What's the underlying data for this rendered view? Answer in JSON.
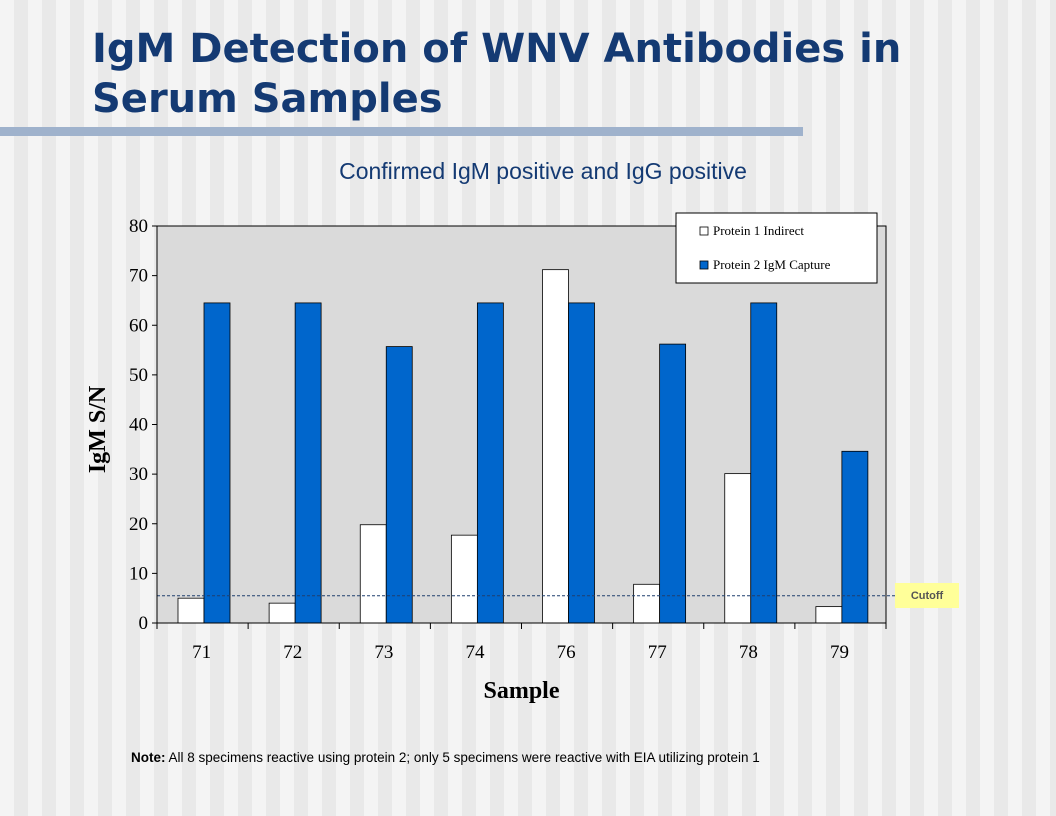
{
  "slide": {
    "title": "IgM Detection of WNV Antibodies in Serum Samples",
    "note_bold": "Note:",
    "note_text": " All 8 specimens reactive using protein 2; only 5 specimens were reactive with EIA utilizing protein 1",
    "cutoff_label": "Cutoff"
  },
  "colors": {
    "title": "#143a73",
    "series1": "#ffffff",
    "series2": "#0066cc",
    "plot_bg": "#dadada",
    "cutoff_line": "#1f3f6e",
    "cutoff_box": "#ffff99"
  },
  "chart_data": {
    "type": "bar",
    "title": "Confirmed IgM positive and IgG positive",
    "xlabel": "Sample",
    "ylabel": "IgM S/N",
    "categories": [
      "71",
      "72",
      "73",
      "74",
      "76",
      "77",
      "78",
      "79"
    ],
    "series": [
      {
        "name": "Protein 1 Indirect",
        "values": [
          5,
          4,
          19.8,
          17.7,
          71.2,
          7.8,
          30.1,
          3.3
        ]
      },
      {
        "name": "Protein 2 IgM Capture",
        "values": [
          64.5,
          64.5,
          55.7,
          64.5,
          64.5,
          56.2,
          64.5,
          34.6
        ]
      }
    ],
    "ylim": [
      0,
      80
    ],
    "yticks": [
      0,
      10,
      20,
      30,
      40,
      50,
      60,
      70,
      80
    ],
    "cutoff": 5.5,
    "legend_position": "top-right",
    "grid": false
  }
}
